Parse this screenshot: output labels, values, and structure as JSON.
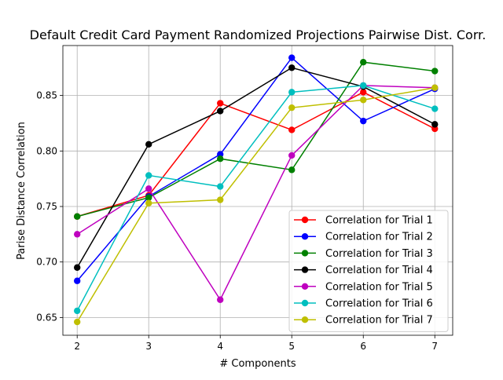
{
  "chart_data": {
    "type": "line",
    "title": "Default Credit Card Payment Randomized Projections Pairwise Dist. Corr.",
    "xlabel": "# Components",
    "ylabel": "Parise Distance Correlation",
    "x": [
      2,
      3,
      4,
      5,
      6,
      7
    ],
    "xlim": [
      1.8,
      7.25
    ],
    "ylim": [
      0.634,
      0.895
    ],
    "xticks": [
      "2",
      "3",
      "4",
      "5",
      "6",
      "7"
    ],
    "yticks": [
      0.65,
      0.7,
      0.75,
      0.8,
      0.85
    ],
    "ytick_labels": [
      "0.65",
      "0.70",
      "0.75",
      "0.80",
      "0.85"
    ],
    "grid": true,
    "legend_position": "lower-right",
    "series": [
      {
        "name": "Correlation for Trial 1",
        "color": "#ff0000",
        "values": [
          0.741,
          0.76,
          0.843,
          0.819,
          0.853,
          0.82
        ]
      },
      {
        "name": "Correlation for Trial 2",
        "color": "#0000ff",
        "values": [
          0.683,
          0.759,
          0.797,
          0.884,
          0.827,
          0.856
        ]
      },
      {
        "name": "Correlation for Trial 3",
        "color": "#008000",
        "values": [
          0.741,
          0.758,
          0.793,
          0.783,
          0.88,
          0.872
        ]
      },
      {
        "name": "Correlation for Trial 4",
        "color": "#000000",
        "values": [
          0.695,
          0.806,
          0.836,
          0.875,
          0.858,
          0.824
        ]
      },
      {
        "name": "Correlation for Trial 5",
        "color": "#bf00bf",
        "values": [
          0.725,
          0.766,
          0.666,
          0.796,
          0.859,
          0.857
        ]
      },
      {
        "name": "Correlation for Trial 6",
        "color": "#00bfbf",
        "values": [
          0.656,
          0.778,
          0.768,
          0.853,
          0.859,
          0.838
        ]
      },
      {
        "name": "Correlation for Trial 7",
        "color": "#bfbf00",
        "values": [
          0.646,
          0.753,
          0.756,
          0.839,
          0.846,
          0.857
        ]
      }
    ]
  }
}
